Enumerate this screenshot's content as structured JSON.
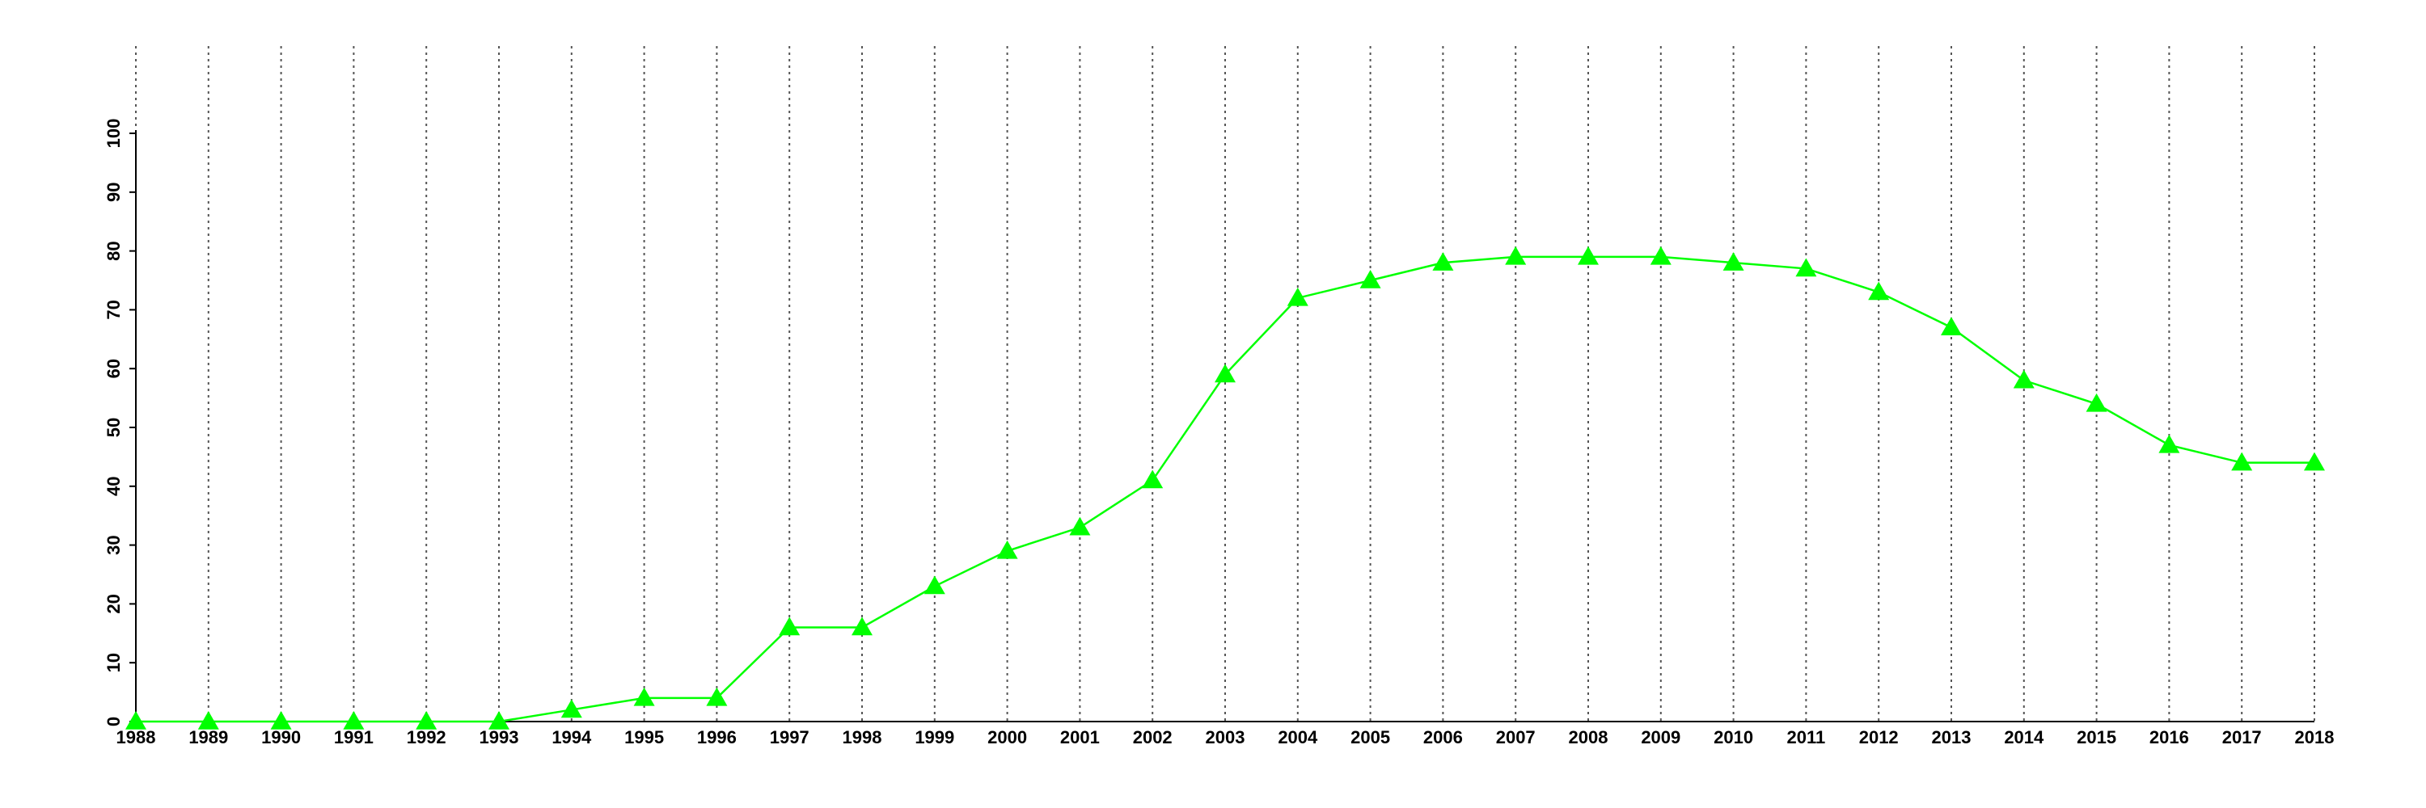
{
  "chart_data": {
    "type": "line",
    "x": [
      1988,
      1989,
      1990,
      1991,
      1992,
      1993,
      1994,
      1995,
      1996,
      1997,
      1998,
      1999,
      2000,
      2001,
      2002,
      2003,
      2004,
      2005,
      2006,
      2007,
      2008,
      2009,
      2010,
      2011,
      2012,
      2013,
      2014,
      2015,
      2016,
      2017,
      2018
    ],
    "values": [
      0,
      0,
      0,
      0,
      0,
      0,
      2,
      4,
      4,
      16,
      16,
      23,
      29,
      33,
      41,
      59,
      72,
      75,
      78,
      79,
      79,
      79,
      78,
      77,
      73,
      67,
      58,
      54,
      47,
      44,
      44
    ],
    "color": "#00ff00",
    "xlim": [
      1988,
      2018
    ],
    "xticks": [
      1988,
      1989,
      1990,
      1991,
      1992,
      1993,
      1994,
      1995,
      1996,
      1997,
      1998,
      1999,
      2000,
      2001,
      2002,
      2003,
      2004,
      2005,
      2006,
      2007,
      2008,
      2009,
      2010,
      2011,
      2012,
      2013,
      2014,
      2015,
      2016,
      2017,
      2018
    ],
    "ylim": [
      0,
      100
    ],
    "yticks": [
      0,
      10,
      20,
      30,
      40,
      50,
      60,
      70,
      80,
      90,
      100
    ],
    "grid": true
  }
}
